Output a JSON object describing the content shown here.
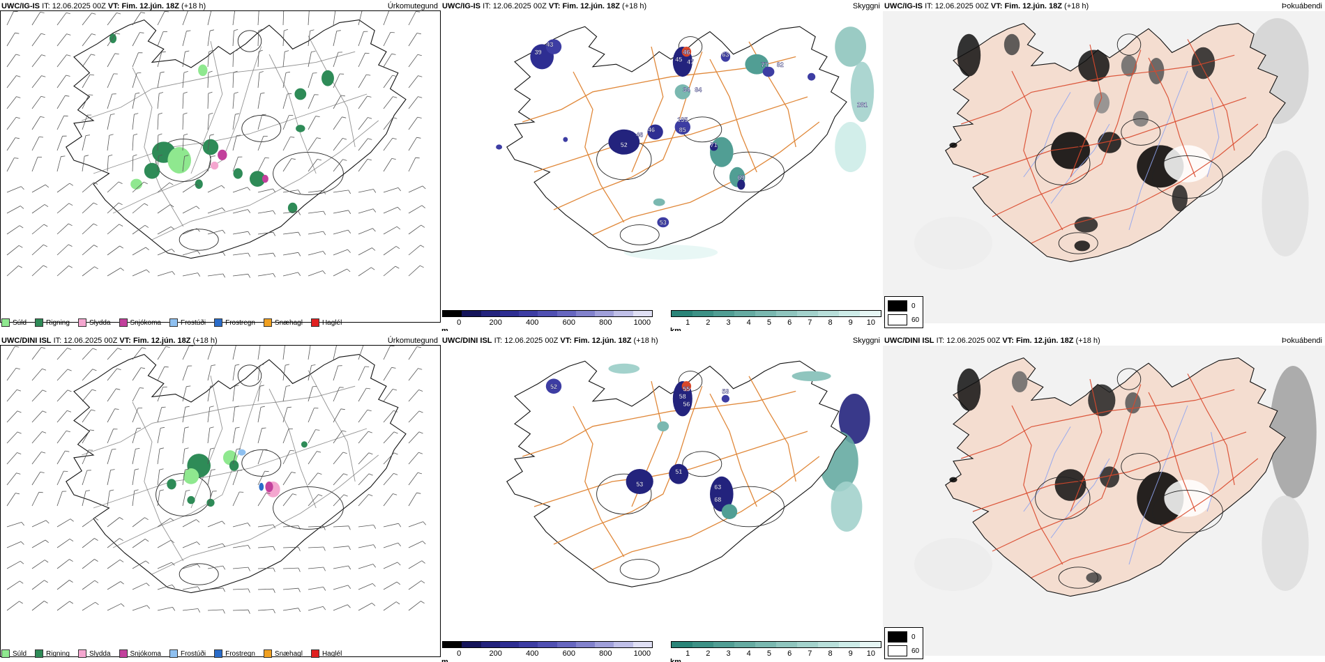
{
  "colors": {
    "coast": "#111111",
    "roads_orange": "#e0883a",
    "roads_red": "#d9482b",
    "rivers": "#8fa4f0",
    "land_fog": "#f4ddd0",
    "drizzle": "#8fe88f",
    "rain": "#2e8b57",
    "sleet": "#f4a6cf",
    "snow": "#c2409c",
    "freezing_drizzle": "#8ec0f0",
    "freezing_rain": "#2a6cc9",
    "snow_pellets": "#f0a020",
    "hail": "#e02020"
  },
  "rows": [
    {
      "model": "UWC/IG-IS",
      "it_label": "IT:",
      "it_value": "12.06.2025 00Z",
      "vt_label": "VT:",
      "vt_value": "Fim. 12.jún. 18Z",
      "lead": "(+18 h)"
    },
    {
      "model": "UWC/DINI ISL",
      "it_label": "IT:",
      "it_value": "12.06.2025 00Z",
      "vt_label": "VT:",
      "vt_value": "Fim. 12.jún. 18Z",
      "lead": "(+18 h)"
    }
  ],
  "panel_titles": {
    "precip": "Úrkomutegund",
    "visibility": "Skyggni",
    "fog": "Þokuábendi"
  },
  "precip_legend": [
    {
      "label": "Súld",
      "color": "#8fe88f"
    },
    {
      "label": "Rigning",
      "color": "#2e8b57"
    },
    {
      "label": "Slydda",
      "color": "#f4a6cf"
    },
    {
      "label": "Snjókoma",
      "color": "#c2409c"
    },
    {
      "label": "Frostúði",
      "color": "#8ec0f0"
    },
    {
      "label": "Frostregn",
      "color": "#2a6cc9"
    },
    {
      "label": "Snæhagl",
      "color": "#f0a020"
    },
    {
      "label": "Haglél",
      "color": "#e02020"
    }
  ],
  "height_scale": {
    "unit": "m",
    "ticks": [
      "0",
      "200",
      "400",
      "600",
      "800",
      "1000"
    ],
    "colors": [
      "#000000",
      "#14145a",
      "#23237d",
      "#2e2e92",
      "#3d3da3",
      "#5050b2",
      "#6767c0",
      "#8282cc",
      "#a0a0da",
      "#c0c0e8",
      "#e0e0f4"
    ]
  },
  "vis_scale": {
    "unit": "km",
    "ticks": [
      "1",
      "2",
      "3",
      "4",
      "5",
      "6",
      "7",
      "8",
      "9",
      "10"
    ],
    "colors": [
      "#2a8478",
      "#3d9186",
      "#519e94",
      "#66aba2",
      "#7ab8b0",
      "#8fc5be",
      "#a3d2cc",
      "#b8dfda",
      "#cdece8",
      "#e6f6f4"
    ]
  },
  "fog_key": [
    {
      "value": "0",
      "color": "#000000"
    },
    {
      "value": "60",
      "color": "#ffffff"
    }
  ],
  "vis_labels": [
    [
      "46",
      "45",
      "47",
      "63",
      "77",
      "82",
      "39",
      "43",
      "34",
      "46",
      "52",
      "46",
      "135",
      "85",
      "71",
      "53",
      "281",
      "84",
      "69"
    ],
    [
      "55",
      "58",
      "56",
      "53",
      "51",
      "63",
      "68",
      "58",
      "52"
    ]
  ]
}
